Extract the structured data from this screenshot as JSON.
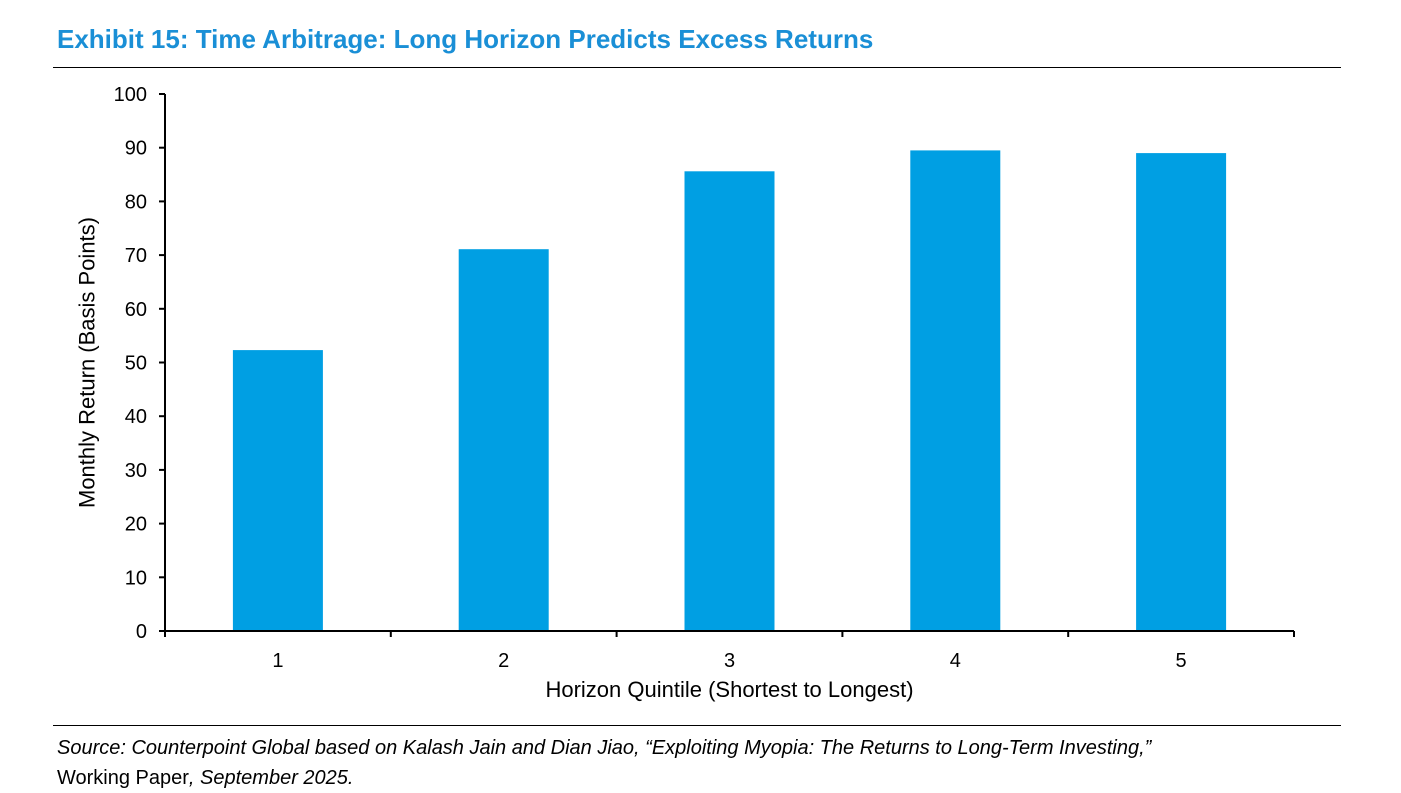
{
  "header": {
    "title": "Exhibit 15: Time Arbitrage: Long Horizon Predicts Excess Returns"
  },
  "footer": {
    "source_part1": "Source: Counterpoint Global based on Kalash Jain and Dian Jiao, “Exploiting Myopia: The Returns to Long-Term Investing,”",
    "source_part2": "Working Paper",
    "source_part3": ", September 2025."
  },
  "colors": {
    "title": "#1a8fd6",
    "bar": "#009fe3",
    "axis": "#000000"
  },
  "chart_data": {
    "type": "bar",
    "categories": [
      "1",
      "2",
      "3",
      "4",
      "5"
    ],
    "values": [
      52.3,
      71.1,
      85.6,
      89.5,
      89.0
    ],
    "xlabel": "Horizon Quintile (Shortest to Longest)",
    "ylabel": "Monthly Return (Basis Points)",
    "ylim": [
      0,
      100
    ],
    "yticks": [
      0,
      10,
      20,
      30,
      40,
      50,
      60,
      70,
      80,
      90,
      100
    ],
    "grid": false,
    "legend": "none"
  }
}
